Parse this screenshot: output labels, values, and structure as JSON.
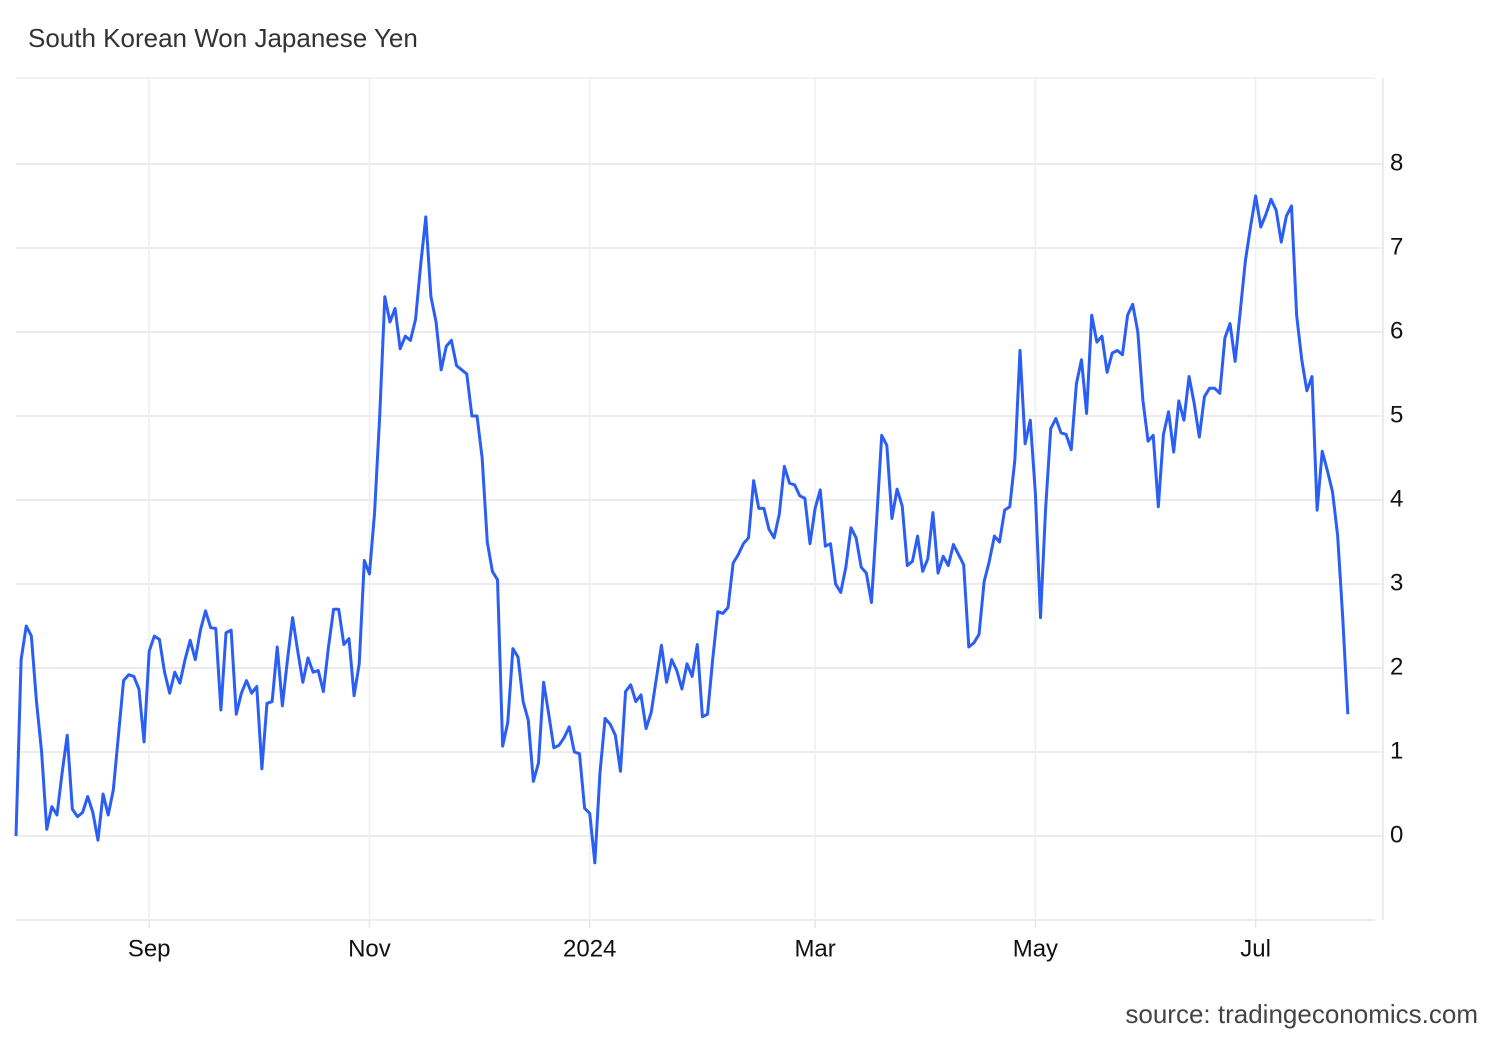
{
  "chart_data": {
    "type": "line",
    "title": "South Korean Won Japanese Yen",
    "source": "source: tradingeconomics.com",
    "series": [
      {
        "name": "South Korean Won Japanese Yen",
        "color": "#2b5ef5",
        "values": [
          0,
          2.1,
          2.5,
          2.38,
          1.6,
          1.0,
          0.08,
          0.35,
          0.25,
          0.75,
          1.2,
          0.32,
          0.23,
          0.28,
          0.47,
          0.28,
          -0.05,
          0.5,
          0.25,
          0.55,
          1.2,
          1.85,
          1.92,
          1.9,
          1.75,
          1.12,
          2.2,
          2.38,
          2.34,
          1.95,
          1.7,
          1.95,
          1.82,
          2.1,
          2.33,
          2.1,
          2.45,
          2.68,
          2.48,
          2.47,
          1.5,
          2.42,
          2.45,
          1.45,
          1.7,
          1.85,
          1.7,
          1.78,
          0.8,
          1.58,
          1.6,
          2.25,
          1.55,
          2.1,
          2.6,
          2.2,
          1.83,
          2.12,
          1.95,
          1.97,
          1.72,
          2.25,
          2.7,
          2.7,
          2.28,
          2.35,
          1.67,
          2.05,
          3.28,
          3.12,
          3.85,
          5.0,
          6.42,
          6.12,
          6.28,
          5.8,
          5.95,
          5.9,
          6.15,
          6.8,
          7.37,
          6.42,
          6.12,
          5.55,
          5.83,
          5.9,
          5.6,
          5.55,
          5.5,
          5.0,
          5.0,
          4.5,
          3.5,
          3.15,
          3.05,
          1.07,
          1.35,
          2.23,
          2.13,
          1.6,
          1.38,
          0.65,
          0.87,
          1.83,
          1.45,
          1.05,
          1.08,
          1.17,
          1.3,
          1.0,
          0.98,
          0.33,
          0.27,
          -0.32,
          0.75,
          1.4,
          1.33,
          1.2,
          0.77,
          1.72,
          1.8,
          1.6,
          1.68,
          1.28,
          1.47,
          1.87,
          2.27,
          1.83,
          2.1,
          1.97,
          1.75,
          2.05,
          1.9,
          2.28,
          1.42,
          1.45,
          2.1,
          2.67,
          2.65,
          2.72,
          3.25,
          3.35,
          3.48,
          3.55,
          4.23,
          3.9,
          3.9,
          3.65,
          3.55,
          3.83,
          4.4,
          4.2,
          4.18,
          4.05,
          4.02,
          3.48,
          3.9,
          4.12,
          3.45,
          3.48,
          3.0,
          2.9,
          3.2,
          3.67,
          3.55,
          3.2,
          3.13,
          2.78,
          3.75,
          4.77,
          4.65,
          3.78,
          4.13,
          3.93,
          3.22,
          3.27,
          3.57,
          3.15,
          3.3,
          3.85,
          3.13,
          3.33,
          3.22,
          3.47,
          3.35,
          3.23,
          2.25,
          2.3,
          2.4,
          3.03,
          3.27,
          3.57,
          3.5,
          3.88,
          3.92,
          4.48,
          5.78,
          4.67,
          4.95,
          4.08,
          2.6,
          3.9,
          4.85,
          4.97,
          4.8,
          4.78,
          4.6,
          5.38,
          5.67,
          5.03,
          6.2,
          5.88,
          5.95,
          5.52,
          5.75,
          5.78,
          5.73,
          6.2,
          6.33,
          6.0,
          5.18,
          4.7,
          4.77,
          3.92,
          4.78,
          5.05,
          4.57,
          5.18,
          4.95,
          5.47,
          5.15,
          4.75,
          5.23,
          5.33,
          5.33,
          5.27,
          5.93,
          6.1,
          5.65,
          6.25,
          6.85,
          7.25,
          7.62,
          7.25,
          7.4,
          7.58,
          7.45,
          7.07,
          7.38,
          7.5,
          6.2,
          5.67,
          5.3,
          5.47,
          3.88,
          4.58,
          4.35,
          4.1,
          3.58,
          2.6,
          1.45
        ]
      }
    ],
    "xlim": [
      0,
      265.3
    ],
    "xticks": [
      {
        "value": 26,
        "label": "Sep"
      },
      {
        "value": 69,
        "label": "Nov"
      },
      {
        "value": 112,
        "label": "2024"
      },
      {
        "value": 156,
        "label": "Mar"
      },
      {
        "value": 199,
        "label": "May"
      },
      {
        "value": 242,
        "label": "Jul"
      }
    ],
    "ylim": [
      -1,
      9
    ],
    "yticks": [
      0,
      1,
      2,
      3,
      4,
      5,
      6,
      7,
      8
    ],
    "grid": true
  }
}
